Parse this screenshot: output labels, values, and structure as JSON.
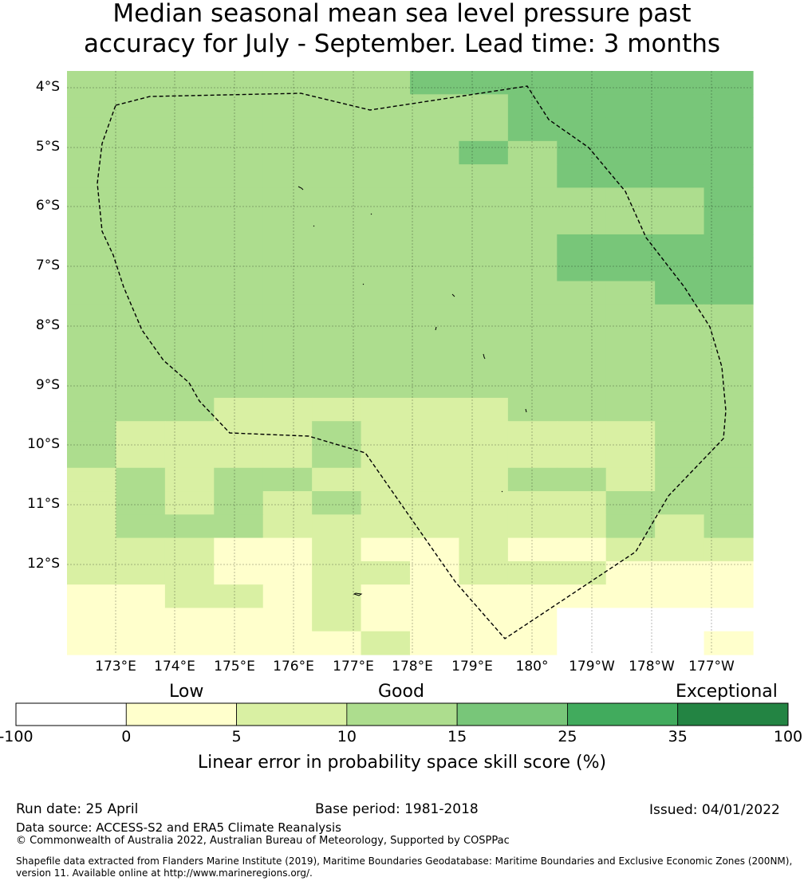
{
  "title": {
    "line1": "Median seasonal mean sea level pressure past",
    "line2": "accuracy for July - September. Lead time: 3 months"
  },
  "map": {
    "lat_labels": [
      "4°S",
      "5°S",
      "6°S",
      "7°S",
      "8°S",
      "9°S",
      "10°S",
      "11°S",
      "12°S"
    ],
    "lon_labels": [
      "173°E",
      "174°E",
      "175°E",
      "176°E",
      "177°E",
      "178°E",
      "179°E",
      "180°",
      "179°W",
      "178°W",
      "177°W"
    ],
    "grid_bins": [
      [
        3,
        3,
        3,
        3,
        3,
        3,
        3,
        4,
        4,
        4,
        4,
        4,
        4,
        4
      ],
      [
        3,
        3,
        3,
        3,
        3,
        3,
        3,
        3,
        3,
        4,
        4,
        4,
        4,
        4
      ],
      [
        3,
        3,
        3,
        3,
        3,
        3,
        3,
        3,
        3,
        4,
        4,
        4,
        4,
        4
      ],
      [
        3,
        3,
        3,
        3,
        3,
        3,
        3,
        3,
        4,
        3,
        4,
        4,
        4,
        4
      ],
      [
        3,
        3,
        3,
        3,
        3,
        3,
        3,
        3,
        3,
        3,
        4,
        4,
        4,
        4
      ],
      [
        3,
        3,
        3,
        3,
        3,
        3,
        3,
        3,
        3,
        3,
        3,
        3,
        3,
        4
      ],
      [
        3,
        3,
        3,
        3,
        3,
        3,
        3,
        3,
        3,
        3,
        3,
        3,
        3,
        4
      ],
      [
        3,
        3,
        3,
        3,
        3,
        3,
        3,
        3,
        3,
        3,
        4,
        4,
        4,
        4
      ],
      [
        3,
        3,
        3,
        3,
        3,
        3,
        3,
        3,
        3,
        3,
        4,
        4,
        4,
        4
      ],
      [
        3,
        3,
        3,
        3,
        3,
        3,
        3,
        3,
        3,
        3,
        3,
        3,
        4,
        4
      ],
      [
        3,
        3,
        3,
        3,
        3,
        3,
        3,
        3,
        3,
        3,
        3,
        3,
        3,
        3
      ],
      [
        3,
        3,
        3,
        3,
        3,
        3,
        3,
        3,
        3,
        3,
        3,
        3,
        3,
        3
      ],
      [
        3,
        3,
        3,
        3,
        3,
        3,
        3,
        3,
        3,
        3,
        3,
        3,
        3,
        3
      ],
      [
        3,
        3,
        3,
        3,
        3,
        3,
        3,
        3,
        3,
        3,
        3,
        3,
        3,
        3
      ],
      [
        3,
        3,
        3,
        2,
        2,
        2,
        2,
        2,
        2,
        3,
        3,
        3,
        3,
        3
      ],
      [
        3,
        2,
        2,
        2,
        2,
        3,
        2,
        2,
        2,
        2,
        2,
        2,
        3,
        3
      ],
      [
        3,
        2,
        2,
        2,
        2,
        3,
        2,
        2,
        2,
        2,
        2,
        2,
        3,
        3
      ],
      [
        2,
        3,
        2,
        3,
        3,
        2,
        2,
        2,
        2,
        3,
        3,
        2,
        3,
        3
      ],
      [
        2,
        3,
        2,
        3,
        2,
        3,
        2,
        2,
        2,
        2,
        2,
        3,
        3,
        3
      ],
      [
        2,
        3,
        3,
        3,
        2,
        2,
        2,
        2,
        2,
        2,
        2,
        3,
        2,
        3
      ],
      [
        2,
        2,
        2,
        1,
        1,
        2,
        1,
        1,
        2,
        1,
        1,
        2,
        2,
        2
      ],
      [
        2,
        2,
        2,
        1,
        1,
        2,
        2,
        1,
        2,
        2,
        2,
        1,
        1,
        1
      ],
      [
        1,
        1,
        2,
        2,
        1,
        2,
        1,
        1,
        1,
        1,
        1,
        1,
        1,
        1
      ],
      [
        1,
        1,
        1,
        1,
        1,
        2,
        1,
        1,
        1,
        1,
        0,
        0,
        0,
        0
      ],
      [
        1,
        1,
        1,
        1,
        1,
        1,
        2,
        1,
        1,
        1,
        0,
        0,
        0,
        1
      ]
    ],
    "boundary_style": "dashed-black"
  },
  "colorbar": {
    "category_labels": [
      "Low",
      "Good",
      "Exceptional"
    ],
    "tick_labels": [
      "-100",
      "0",
      "5",
      "10",
      "15",
      "25",
      "35",
      "100"
    ],
    "bin_colors": [
      "#ffffff",
      "#ffffcc",
      "#d9f0a3",
      "#addd8e",
      "#78c679",
      "#41ab5d",
      "#238443"
    ],
    "title": "Linear error in probability space skill score (%)"
  },
  "footer": {
    "run_date": "Run date: 25 April",
    "base_period": "Base period: 1981-2018",
    "issued": "Issued: 04/01/2022",
    "data_source": "Data source: ACCESS-S2 and ERA5 Climate Reanalysis",
    "copyright": "© Commonwealth of Australia 2022, Australian Bureau of Meteorology, Supported by COSPPac",
    "shapefile_line1": "Shapefile data extracted from Flanders Marine Institute (2019), Maritime Boundaries Geodatabase: Maritime Boundaries and Exclusive Economic Zones (200NM),",
    "shapefile_line2": "version 11. Available online at http://www.marineregions.org/."
  }
}
